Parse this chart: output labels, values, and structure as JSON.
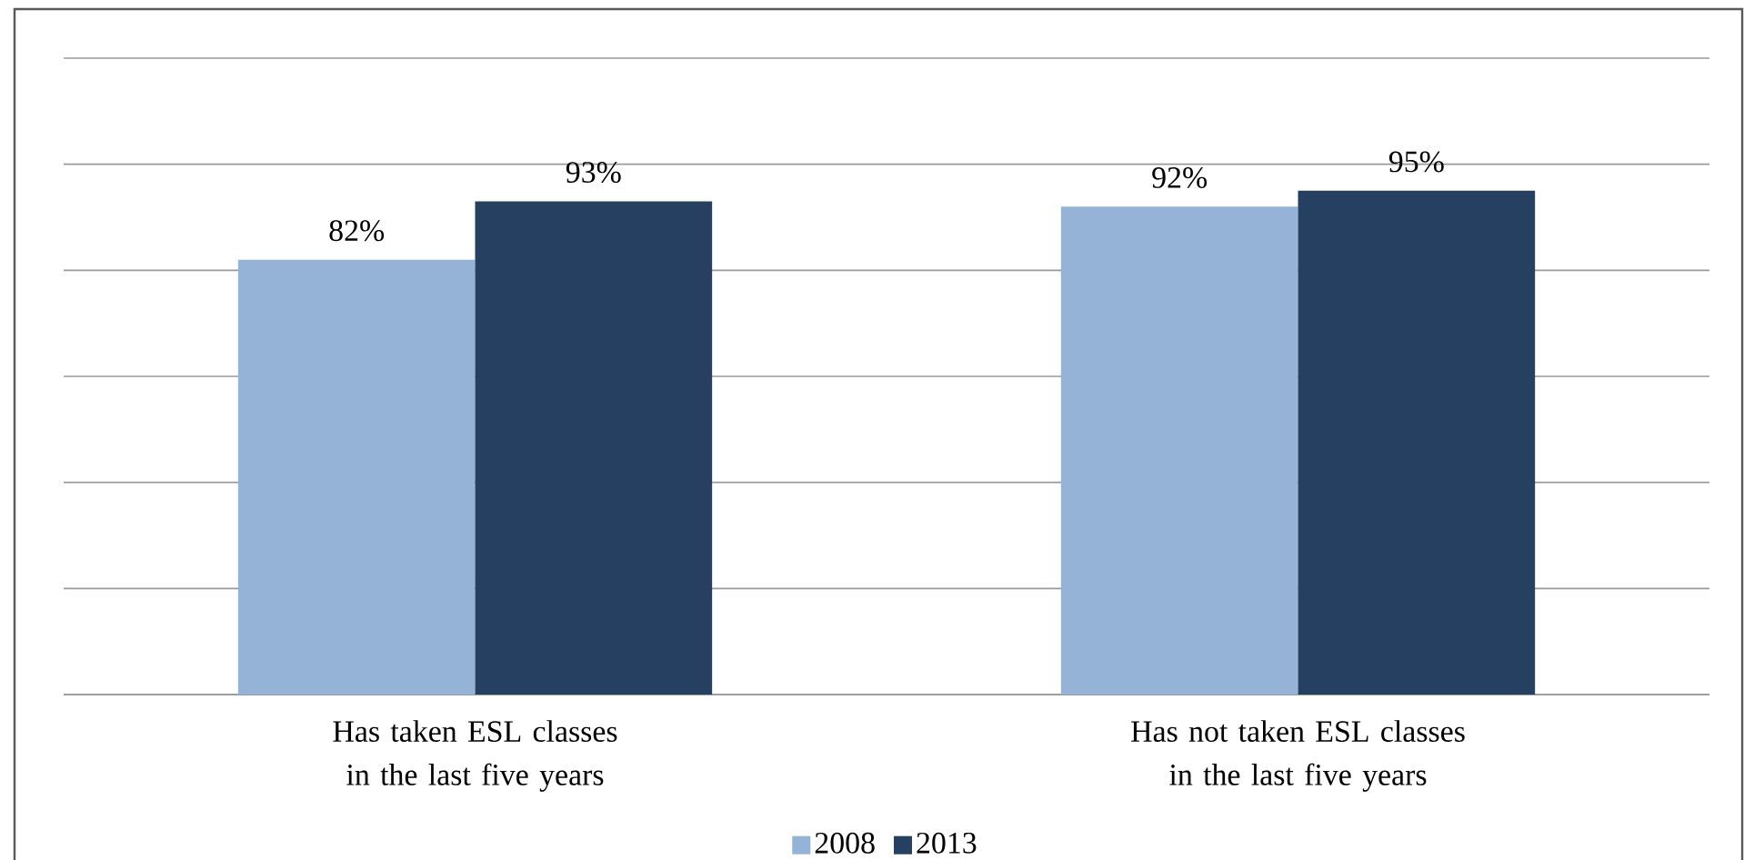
{
  "chart_data": {
    "type": "bar",
    "categories": [
      "Has taken ESL classes in the last five years",
      "Has not taken ESL classes in the last five years"
    ],
    "series": [
      {
        "name": "2008",
        "color": "#95b3d7",
        "values": [
          82,
          92
        ],
        "value_labels": [
          "82%",
          "92%"
        ]
      },
      {
        "name": "2013",
        "color": "#254061",
        "values": [
          93,
          95
        ],
        "value_labels": [
          "93%",
          "95%"
        ]
      }
    ],
    "ylim": [
      0,
      120
    ],
    "yticks": [
      {
        "value": 0,
        "label": null
      },
      {
        "value": 20,
        "label": null
      },
      {
        "value": 40,
        "label": null
      },
      {
        "value": 60,
        "label": null
      },
      {
        "value": 80,
        "label": null
      },
      {
        "value": 100,
        "label": null
      },
      {
        "value": 120,
        "label": null
      }
    ],
    "grid": "y",
    "tick_labels": "x",
    "legend": "bottom"
  }
}
